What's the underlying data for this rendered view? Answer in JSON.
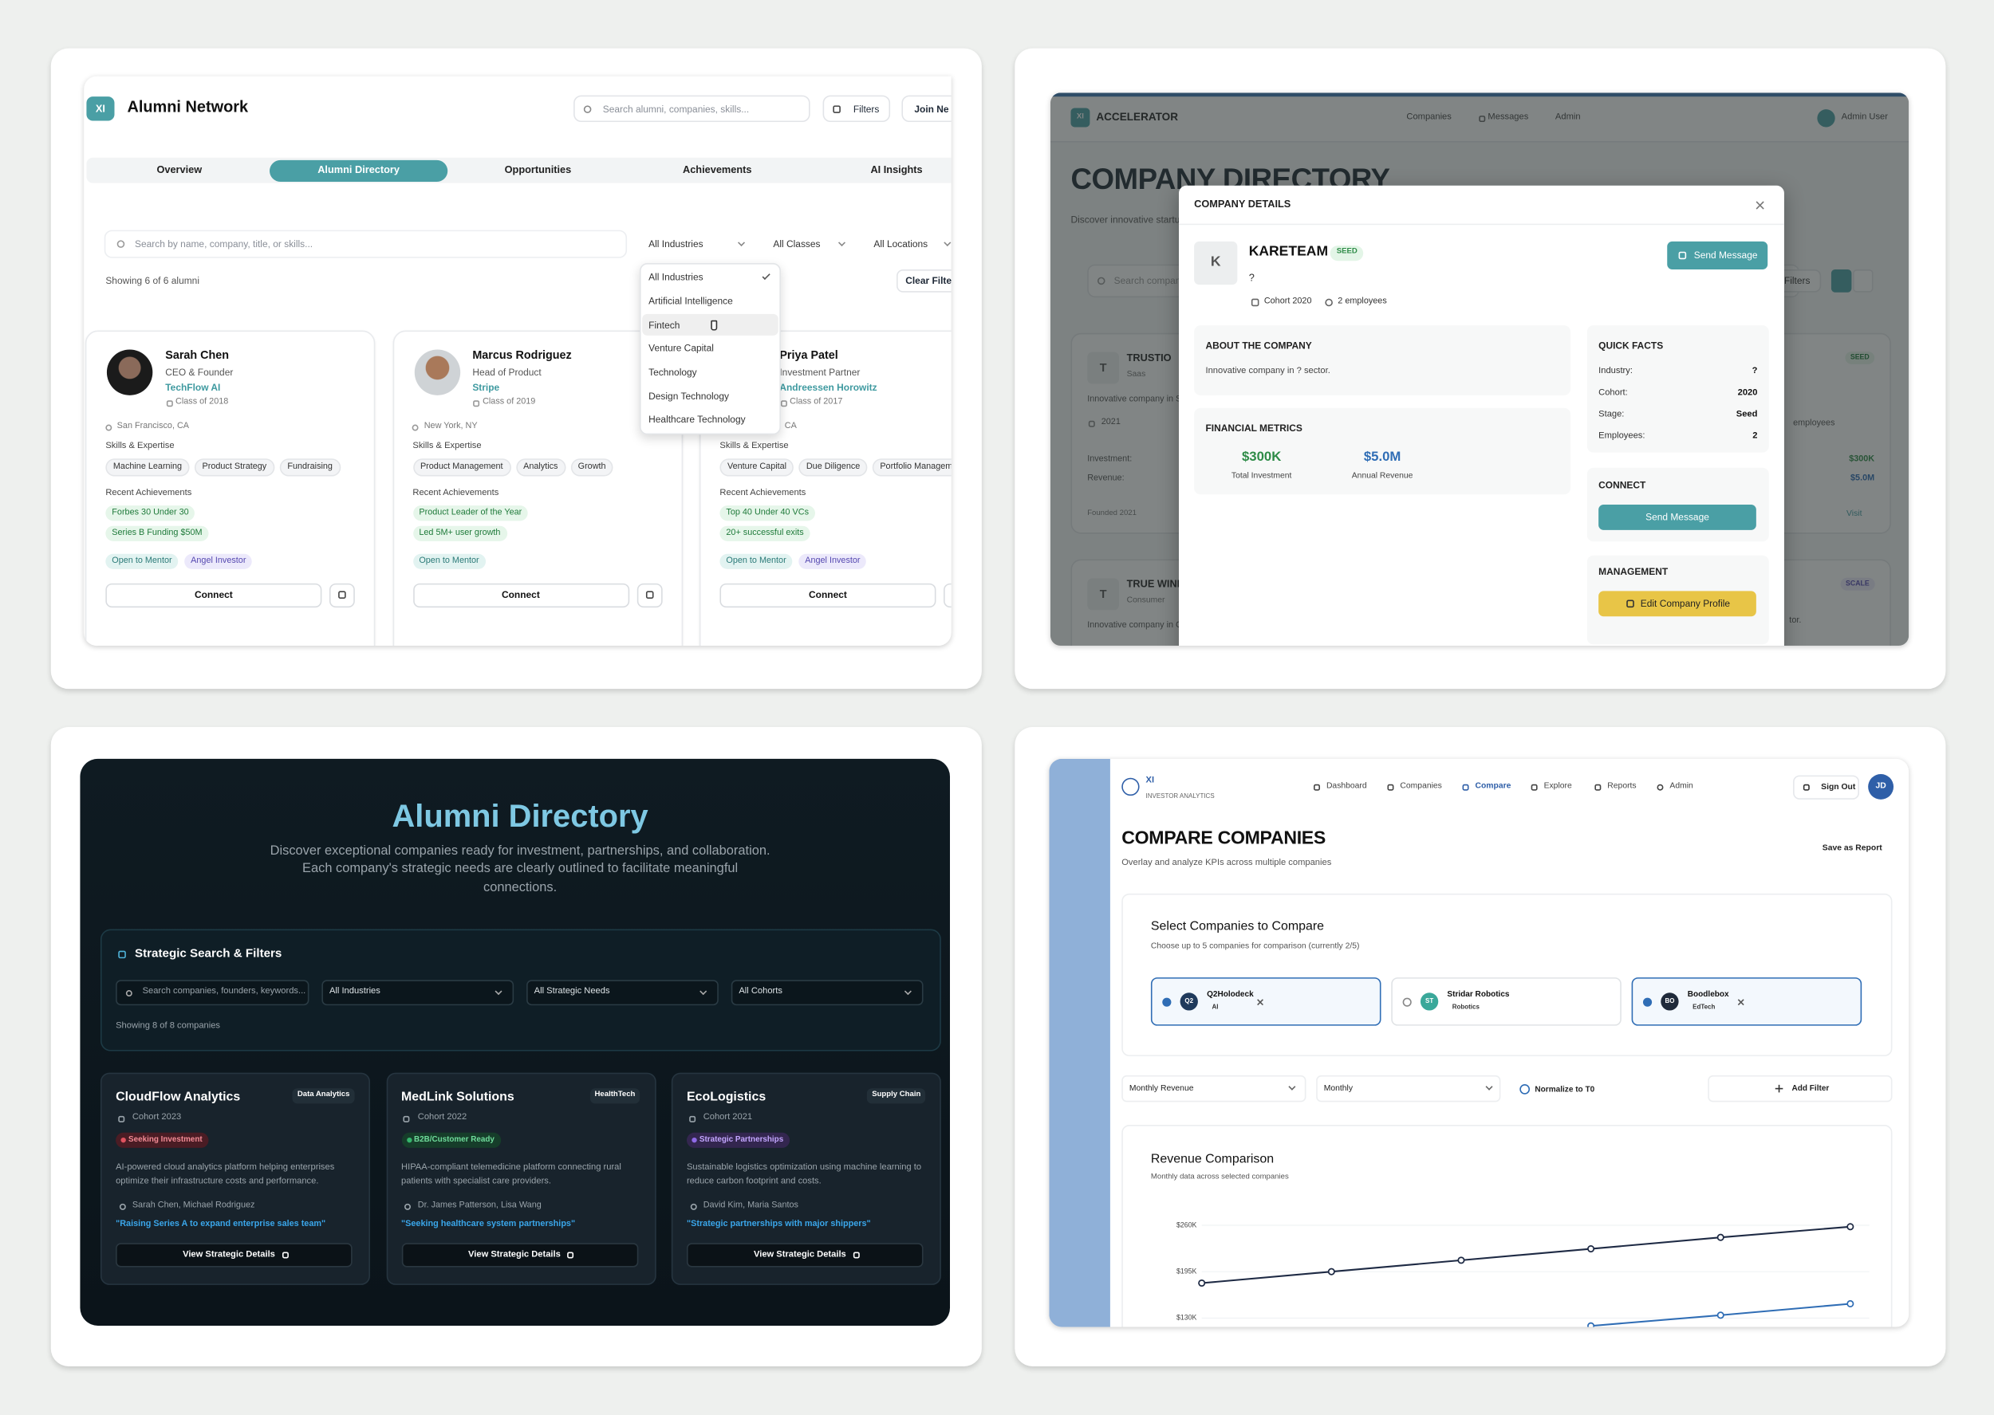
{
  "panel1": {
    "logo": "XI",
    "title": "Alumni Network",
    "search": "Search alumni, companies, skills...",
    "filters": "Filters",
    "join": "Join Ne",
    "tabs": [
      "Overview",
      "Alumni Directory",
      "Opportunities",
      "Achievements",
      "AI Insights"
    ],
    "directory_search": "Search by name, company, title, or skills...",
    "selects": [
      "All Industries",
      "All Classes",
      "All Locations"
    ],
    "showing": "Showing 6 of 6 alumni",
    "clear": "Clear Filte",
    "dropdown": [
      "All Industries",
      "Artificial Intelligence",
      "Fintech",
      "Venture Capital",
      "Technology",
      "Design Technology",
      "Healthcare Technology"
    ],
    "skills_label": "Skills & Expertise",
    "achievements_label": "Recent Achievements",
    "connect": "Connect",
    "cards": [
      {
        "name": "Sarah Chen",
        "role": "CEO & Founder",
        "company": "TechFlow AI",
        "class": "Class of 2018",
        "location": "San Francisco, CA",
        "skills": [
          "Machine Learning",
          "Product Strategy",
          "Fundraising"
        ],
        "achievements": [
          "Forbes 30 Under 30",
          "Series B Funding $50M"
        ],
        "tags": [
          "Open to Mentor",
          "Angel Investor"
        ]
      },
      {
        "name": "Marcus Rodriguez",
        "role": "Head of Product",
        "company": "Stripe",
        "class": "Class of 2019",
        "location": "New York, NY",
        "skills": [
          "Product Management",
          "Analytics",
          "Growth"
        ],
        "achievements": [
          "Product Leader of the Year",
          "Led 5M+ user growth"
        ],
        "tags": [
          "Open to Mentor"
        ]
      },
      {
        "name": "Priya Patel",
        "role": "Investment Partner",
        "company": "Andreessen Horowitz",
        "class": "Class of 2017",
        "location": "CA",
        "skills": [
          "Venture Capital",
          "Due Diligence",
          "Portfolio Management"
        ],
        "achievements": [
          "Top 40 Under 40 VCs",
          "20+ successful exits"
        ],
        "tags": [
          "Open to Mentor",
          "Angel Investor"
        ]
      }
    ]
  },
  "panel2": {
    "logo": "XI",
    "brand": "ACCELERATOR",
    "nav": [
      "Companies",
      "Messages",
      "Admin"
    ],
    "user": "Admin User",
    "heading": "COMPANY DIRECTORY",
    "subheading": "Discover innovative startu",
    "search": "Search compan",
    "filters": "Filters",
    "background_cards": [
      {
        "initial": "T",
        "name": "TRUSTIO",
        "sector": "Saas",
        "description": "Innovative company in S",
        "year": "2021",
        "badge": "SEED",
        "employees": "employees",
        "rows": [
          {
            "label": "Investment:",
            "value": "$300K"
          },
          {
            "label": "Revenue:",
            "value": "$5.0M"
          }
        ],
        "founded": "Founded 2021",
        "link": "Visit"
      },
      {
        "initial": "T",
        "name": "TRUE WINE",
        "sector": "Consumer",
        "description": "Innovative company in C",
        "badge": "SCALE",
        "tail": "tor."
      }
    ],
    "modal": {
      "title": "COMPANY DETAILS",
      "initial": "K",
      "name": "KARETEAM",
      "stage": "SEED",
      "sector": "?",
      "cohort": "Cohort 2020",
      "employees": "2 employees",
      "send": "Send Message",
      "about_title": "ABOUT THE COMPANY",
      "about": "Innovative company in ? sector.",
      "financial_title": "FINANCIAL METRICS",
      "metrics": [
        {
          "value": "$300K",
          "label": "Total Investment"
        },
        {
          "value": "$5.0M",
          "label": "Annual Revenue"
        }
      ],
      "facts_title": "QUICK FACTS",
      "facts": [
        {
          "label": "Industry:",
          "value": "?"
        },
        {
          "label": "Cohort:",
          "value": "2020"
        },
        {
          "label": "Stage:",
          "value": "Seed"
        },
        {
          "label": "Employees:",
          "value": "2"
        }
      ],
      "connect_title": "CONNECT",
      "connect_button": "Send Message",
      "management_title": "MANAGEMENT",
      "edit_button": "Edit Company Profile"
    }
  },
  "panel3": {
    "title": "Alumni Directory",
    "description": "Discover exceptional companies ready for investment, partnerships, and collaboration. Each company's strategic needs are clearly outlined to facilitate meaningful connections.",
    "filters_title": "Strategic Search & Filters",
    "search": "Search companies, founders, keywords...",
    "selects": [
      "All Industries",
      "All Strategic Needs",
      "All Cohorts"
    ],
    "showing": "Showing 8 of 8 companies",
    "button": "View Strategic Details",
    "cards": [
      {
        "name": "CloudFlow Analytics",
        "category": "Data Analytics",
        "cohort": "Cohort 2023",
        "status": "Seeking Investment",
        "description": "AI-powered cloud analytics platform helping enterprises optimize their infrastructure costs and performance.",
        "founders": "Sarah Chen, Michael Rodriguez",
        "quote": "\"Raising Series A to expand enterprise sales team\""
      },
      {
        "name": "MedLink Solutions",
        "category": "HealthTech",
        "cohort": "Cohort 2022",
        "status": "B2B/Customer Ready",
        "description": "HIPAA-compliant telemedicine platform connecting rural patients with specialist care providers.",
        "founders": "Dr. James Patterson, Lisa Wang",
        "quote": "\"Seeking healthcare system partnerships\""
      },
      {
        "name": "EcoLogistics",
        "category": "Supply Chain",
        "cohort": "Cohort 2021",
        "status": "Strategic Partnerships",
        "description": "Sustainable logistics optimization using machine learning to reduce carbon footprint and costs.",
        "founders": "David Kim, Maria Santos",
        "quote": "\"Strategic partnerships with major shippers\""
      }
    ]
  },
  "panel4": {
    "logo": "XI",
    "logo_sub": "INVESTOR ANALYTICS",
    "nav": [
      "Dashboard",
      "Companies",
      "Compare",
      "Explore",
      "Reports",
      "Admin"
    ],
    "sign_out": "Sign Out",
    "user": "JD",
    "title": "COMPARE COMPANIES",
    "subtitle": "Overlay and analyze KPIs across multiple companies",
    "save": "Save as Report",
    "select_title": "Select Companies to Compare",
    "select_subtitle": "Choose up to 5 companies for comparison (currently 2/5)",
    "companies": [
      {
        "initials": "Q2",
        "name": "Q2Holodeck",
        "sector": "AI",
        "selected": true
      },
      {
        "initials": "ST",
        "name": "Stridar Robotics",
        "sector": "Robotics",
        "selected": false
      },
      {
        "initials": "BO",
        "name": "Boodlebox",
        "sector": "EdTech",
        "selected": true
      }
    ],
    "metric": "Monthly Revenue",
    "period": "Monthly",
    "normalize": "Normalize to T0",
    "add_filter": "Add Filter"
  },
  "chart_data": {
    "type": "line",
    "title": "Revenue Comparison",
    "subtitle": "Monthly data across selected companies",
    "ylim": [
      130000,
      260000
    ],
    "yticks": [
      {
        "value": 260000,
        "label": "$260K"
      },
      {
        "value": 195000,
        "label": "$195K"
      },
      {
        "value": 130000,
        "label": "$130K"
      }
    ],
    "grid": true,
    "series": [
      {
        "color": "#1e2a44",
        "values": [
          179000,
          195000,
          211000,
          227000,
          243000,
          258000
        ]
      },
      {
        "color": "#2f6db5",
        "values": [
          null,
          null,
          null,
          119000,
          134000,
          150000
        ]
      }
    ]
  }
}
